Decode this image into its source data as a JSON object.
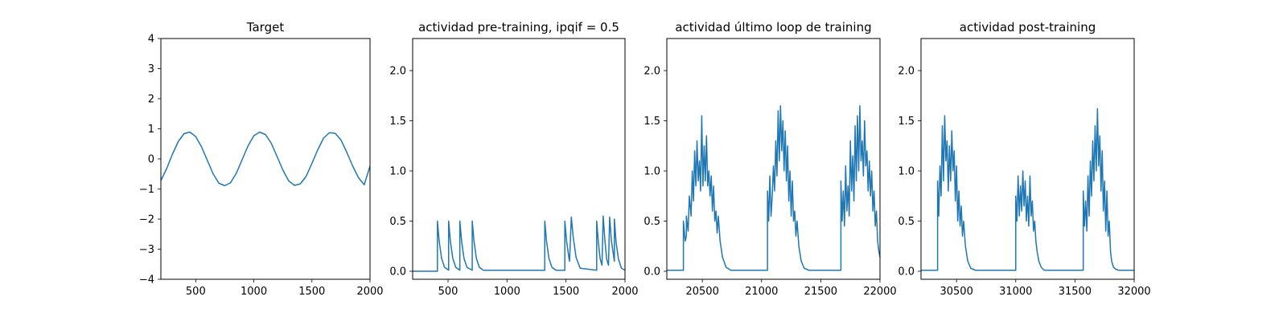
{
  "chart_data": [
    {
      "type": "line",
      "title": "Target",
      "xlim": [
        200,
        2000
      ],
      "ylim": [
        -4,
        4
      ],
      "xticks": [
        500,
        1000,
        1500,
        2000
      ],
      "yticks": [
        -4,
        -3,
        -2,
        -1,
        0,
        1,
        2,
        3,
        4
      ],
      "xtick_labels": [
        "500",
        "1000",
        "1500",
        "2000"
      ],
      "ytick_labels": [
        "−4",
        "−3",
        "−2",
        "−1",
        "0",
        "1",
        "2",
        "3",
        "4"
      ],
      "series": [
        {
          "color": "#1f77b4",
          "x": [
            200,
            250,
            300,
            350,
            400,
            450,
            500,
            550,
            600,
            650,
            700,
            750,
            800,
            850,
            900,
            950,
            1000,
            1050,
            1100,
            1150,
            1200,
            1250,
            1300,
            1350,
            1400,
            1450,
            1500,
            1550,
            1600,
            1650,
            1700,
            1750,
            1800,
            1850,
            1900,
            1950,
            2000
          ],
          "y": [
            -0.72,
            -0.32,
            0.16,
            0.58,
            0.84,
            0.89,
            0.74,
            0.4,
            -0.05,
            -0.5,
            -0.81,
            -0.89,
            -0.79,
            -0.47,
            -0.02,
            0.43,
            0.77,
            0.89,
            0.81,
            0.52,
            0.08,
            -0.37,
            -0.73,
            -0.88,
            -0.83,
            -0.58,
            -0.15,
            0.3,
            0.69,
            0.87,
            0.85,
            0.63,
            0.22,
            -0.23,
            -0.62,
            -0.86,
            -0.24
          ]
        }
      ]
    },
    {
      "type": "line",
      "title": "actividad pre-training, ipqif = 0.5",
      "xlim": [
        200,
        2000
      ],
      "ylim": [
        -0.08,
        2.32
      ],
      "xticks": [
        500,
        1000,
        1500,
        2000
      ],
      "yticks": [
        0.0,
        0.5,
        1.0,
        1.5,
        2.0
      ],
      "xtick_labels": [
        "500",
        "1000",
        "1500",
        "2000"
      ],
      "ytick_labels": [
        "0.0",
        "0.5",
        "1.0",
        "1.5",
        "2.0"
      ],
      "series": [
        {
          "color": "#1f77b4",
          "x": [
            200,
            410,
            410,
            425,
            445,
            470,
            505,
            505,
            520,
            540,
            565,
            600,
            600,
            615,
            635,
            660,
            705,
            705,
            720,
            740,
            765,
            800,
            1320,
            1320,
            1335,
            1355,
            1380,
            1415,
            1490,
            1490,
            1505,
            1525,
            1530,
            1545,
            1560,
            1585,
            1620,
            1760,
            1760,
            1775,
            1790,
            1805,
            1815,
            1830,
            1845,
            1860,
            1870,
            1885,
            1910,
            1910,
            1925,
            1945,
            1970,
            2000
          ],
          "y": [
            0,
            0,
            0.5,
            0.3,
            0.13,
            0.04,
            0.01,
            0.5,
            0.3,
            0.13,
            0.04,
            0.01,
            0.5,
            0.3,
            0.13,
            0.04,
            0.01,
            0.5,
            0.3,
            0.13,
            0.04,
            0.01,
            0.01,
            0.5,
            0.3,
            0.13,
            0.04,
            0.01,
            0.01,
            0.5,
            0.3,
            0.13,
            0.1,
            0.54,
            0.35,
            0.14,
            0.03,
            0.01,
            0.5,
            0.28,
            0.12,
            0.06,
            0.55,
            0.3,
            0.12,
            0.06,
            0.54,
            0.3,
            0.1,
            0.52,
            0.28,
            0.12,
            0.03,
            0.01
          ]
        }
      ]
    },
    {
      "type": "line",
      "title": "actividad último loop de training",
      "xlim": [
        20200,
        22000
      ],
      "ylim": [
        -0.08,
        2.32
      ],
      "xticks": [
        20500,
        21000,
        21500,
        22000
      ],
      "yticks": [
        0.0,
        0.5,
        1.0,
        1.5,
        2.0
      ],
      "xtick_labels": [
        "20500",
        "21000",
        "21500",
        "22000"
      ],
      "ytick_labels": [
        "0.0",
        "0.5",
        "1.0",
        "1.5",
        "2.0"
      ],
      "series": [
        {
          "color": "#1f77b4",
          "x": [
            20200,
            20340,
            20340,
            20355,
            20365,
            20365,
            20380,
            20390,
            20405,
            20415,
            20425,
            20435,
            20445,
            20455,
            20465,
            20475,
            20485,
            20495,
            20505,
            20515,
            20525,
            20535,
            20545,
            20555,
            20565,
            20575,
            20585,
            20595,
            20605,
            20615,
            20625,
            20635,
            20650,
            20670,
            20700,
            20740,
            21050,
            21050,
            21060,
            21070,
            21080,
            21090,
            21100,
            21110,
            21120,
            21130,
            21140,
            21150,
            21160,
            21170,
            21180,
            21190,
            21200,
            21210,
            21220,
            21230,
            21240,
            21250,
            21260,
            21270,
            21280,
            21290,
            21300,
            21315,
            21335,
            21360,
            21400,
            21670,
            21670,
            21680,
            21690,
            21700,
            21710,
            21720,
            21730,
            21740,
            21750,
            21760,
            21770,
            21780,
            21790,
            21800,
            21810,
            21820,
            21830,
            21840,
            21850,
            21860,
            21870,
            21880,
            21890,
            21900,
            21910,
            21920,
            21930,
            21940,
            21950,
            21960,
            21970,
            21980,
            21990,
            22000
          ],
          "y": [
            0.01,
            0.01,
            0.5,
            0.3,
            0.35,
            0.55,
            0.4,
            0.75,
            0.55,
            1.0,
            0.7,
            1.2,
            0.85,
            1.3,
            0.9,
            1.1,
            0.8,
            1.55,
            0.85,
            1.25,
            0.9,
            1.35,
            0.85,
            1.0,
            0.75,
            0.95,
            0.6,
            0.85,
            0.5,
            0.6,
            0.38,
            0.55,
            0.3,
            0.14,
            0.04,
            0.01,
            0.01,
            0.8,
            0.5,
            0.95,
            0.55,
            0.75,
            1.05,
            0.8,
            1.3,
            0.95,
            1.6,
            1.1,
            1.65,
            1.2,
            1.5,
            1.0,
            1.4,
            0.9,
            1.25,
            0.7,
            1.0,
            0.55,
            0.9,
            0.5,
            0.6,
            0.35,
            0.5,
            0.25,
            0.1,
            0.03,
            0.01,
            0.01,
            0.9,
            0.5,
            0.8,
            0.45,
            1.05,
            0.6,
            0.85,
            0.55,
            1.3,
            0.8,
            1.15,
            0.7,
            1.45,
            0.9,
            1.55,
            1.0,
            1.65,
            1.1,
            1.3,
            0.95,
            1.5,
            1.05,
            1.2,
            0.8,
            1.1,
            0.75,
            1.0,
            0.6,
            0.8,
            0.45,
            0.6,
            0.3,
            0.2,
            0.14
          ]
        }
      ]
    },
    {
      "type": "line",
      "title": "actividad post-training",
      "xlim": [
        30200,
        32000
      ],
      "ylim": [
        -0.08,
        2.32
      ],
      "xticks": [
        30500,
        31000,
        31500,
        32000
      ],
      "yticks": [
        0.0,
        0.5,
        1.0,
        1.5,
        2.0
      ],
      "xtick_labels": [
        "30500",
        "31000",
        "31500",
        "32000"
      ],
      "ytick_labels": [
        "0.0",
        "0.5",
        "1.0",
        "1.5",
        "2.0"
      ],
      "series": [
        {
          "color": "#1f77b4",
          "x": [
            30200,
            30340,
            30340,
            30350,
            30360,
            30370,
            30380,
            30390,
            30400,
            30410,
            30420,
            30430,
            30440,
            30450,
            30460,
            30470,
            30480,
            30490,
            30500,
            30510,
            30520,
            30530,
            30540,
            30550,
            30560,
            30575,
            30595,
            30620,
            30660,
            31000,
            31000,
            31010,
            31020,
            31030,
            31040,
            31050,
            31060,
            31070,
            31080,
            31090,
            31100,
            31110,
            31120,
            31130,
            31140,
            31150,
            31160,
            31170,
            31180,
            31195,
            31215,
            31240,
            31280,
            31570,
            31570,
            31580,
            31590,
            31600,
            31610,
            31620,
            31630,
            31640,
            31650,
            31660,
            31670,
            31680,
            31690,
            31700,
            31710,
            31720,
            31730,
            31740,
            31750,
            31760,
            31770,
            31780,
            31790,
            31800,
            31810,
            31825,
            31845,
            31870,
            31910,
            31960,
            32000
          ],
          "y": [
            0.01,
            0.01,
            0.9,
            0.55,
            1.05,
            0.75,
            1.45,
            0.9,
            1.55,
            1.1,
            1.3,
            0.8,
            1.25,
            0.9,
            1.4,
            1.0,
            1.2,
            0.7,
            1.05,
            0.5,
            0.8,
            0.45,
            0.65,
            0.35,
            0.5,
            0.25,
            0.1,
            0.03,
            0.01,
            0.01,
            0.75,
            0.5,
            0.95,
            0.55,
            0.85,
            0.6,
            1.0,
            0.65,
            0.9,
            0.5,
            0.75,
            0.45,
            0.95,
            0.55,
            0.7,
            0.4,
            0.5,
            0.3,
            0.2,
            0.1,
            0.04,
            0.01,
            0.01,
            0.01,
            0.8,
            0.45,
            0.7,
            0.4,
            0.95,
            0.55,
            1.1,
            0.75,
            1.3,
            0.9,
            1.45,
            1.0,
            1.62,
            1.05,
            1.35,
            0.8,
            1.2,
            0.6,
            0.9,
            0.4,
            0.8,
            0.35,
            0.5,
            0.2,
            0.1,
            0.04,
            0.02,
            0.01,
            0.01,
            0.01,
            0.01
          ]
        }
      ]
    }
  ]
}
